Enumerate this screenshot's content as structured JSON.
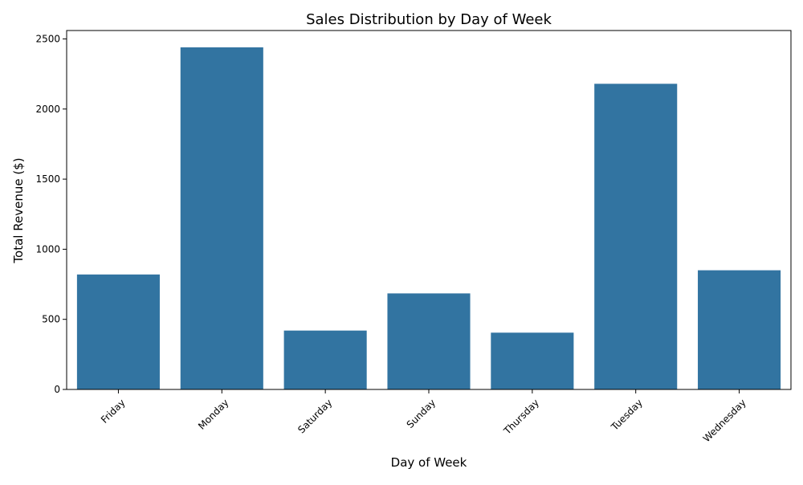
{
  "chart_data": {
    "type": "bar",
    "title": "Sales Distribution by Day of Week",
    "xlabel": "Day of Week",
    "ylabel": "Total Revenue ($)",
    "categories": [
      "Friday",
      "Monday",
      "Saturday",
      "Sunday",
      "Thursday",
      "Tuesday",
      "Wednesday"
    ],
    "values": [
      820,
      2440,
      420,
      685,
      405,
      2180,
      850
    ],
    "ylim": [
      0,
      2560
    ],
    "yticks": [
      0,
      500,
      1000,
      1500,
      2000,
      2500
    ],
    "ytick_labels": [
      "0",
      "500",
      "1000",
      "1500",
      "2000",
      "2500"
    ],
    "xtick_rotation": 45,
    "grid": false,
    "legend": "none",
    "bar_color": "#3274a1"
  }
}
